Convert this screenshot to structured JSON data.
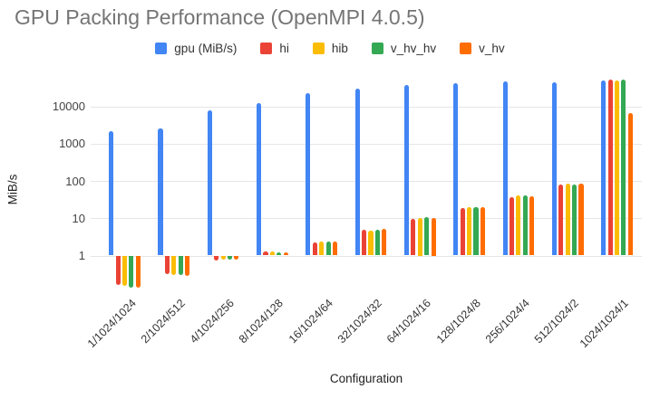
{
  "colors": {
    "title": "#757575",
    "gridline": "#e6e6e6",
    "axis_text": "#444444",
    "background": "#ffffff"
  },
  "chart_data": {
    "type": "bar",
    "title": "GPU Packing Performance (OpenMPI 4.0.5)",
    "xlabel": "Configuration",
    "ylabel": "MiB/s",
    "y_scale": "log",
    "y_ticks": [
      1,
      10,
      100,
      1000,
      10000
    ],
    "ylim": [
      0.1,
      60000
    ],
    "grid": true,
    "legend_position": "top",
    "categories": [
      "1/1024/1024",
      "2/1024/512",
      "4/1024/256",
      "8/1024/128",
      "16/1024/64",
      "32/1024/32",
      "64/1024/16",
      "128/1024/8",
      "256/1024/4",
      "512/1024/2",
      "1024/1024/1"
    ],
    "series": [
      {
        "name": "gpu (MiB/s)",
        "color": "#4285F4",
        "values": [
          2100,
          2600,
          7900,
          12000,
          22000,
          30000,
          38000,
          41000,
          47000,
          44000,
          50000
        ]
      },
      {
        "name": "hi",
        "color": "#EA4335",
        "values": [
          0.16,
          0.32,
          0.75,
          1.3,
          2.2,
          5.0,
          9.7,
          19,
          37,
          79,
          53000
        ]
      },
      {
        "name": "hib",
        "color": "#FBBC04",
        "values": [
          0.15,
          0.3,
          0.78,
          1.3,
          2.4,
          4.6,
          10,
          20,
          40,
          86,
          49000
        ]
      },
      {
        "name": "v_hv_hv",
        "color": "#34A853",
        "values": [
          0.14,
          0.3,
          0.76,
          1.2,
          2.4,
          4.8,
          10.5,
          20,
          40,
          79,
          52000
        ]
      },
      {
        "name": "v_hv",
        "color": "#FF6D01",
        "values": [
          0.14,
          0.29,
          0.78,
          1.25,
          2.4,
          5.2,
          10,
          20,
          39,
          86,
          6500
        ]
      }
    ]
  }
}
